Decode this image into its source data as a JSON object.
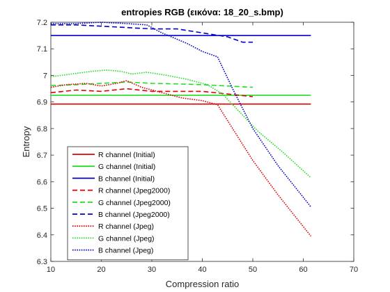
{
  "chart_data": {
    "type": "line",
    "title": "entropies RGB (εικόνα: 18_20_s.bmp)",
    "xlabel": "Compression ratio",
    "ylabel": "Entropy",
    "xlim": [
      10,
      70
    ],
    "ylim": [
      6.3,
      7.2
    ],
    "xticks": [
      10,
      20,
      30,
      40,
      50,
      60,
      70
    ],
    "yticks": [
      6.3,
      6.4,
      6.5,
      6.6,
      6.7,
      6.8,
      6.9,
      7,
      7.1,
      7.2
    ],
    "grid": false,
    "legend_position": "bottom-left",
    "series": [
      {
        "name": "R channel (Initial)",
        "color": "#e00000",
        "style": "solid",
        "x": [
          10,
          61.5
        ],
        "y": [
          6.892,
          6.892
        ]
      },
      {
        "name": "G channel (Initial)",
        "color": "#22dd22",
        "style": "solid",
        "x": [
          10,
          61.5
        ],
        "y": [
          6.925,
          6.925
        ]
      },
      {
        "name": "B channel (Initial)",
        "color": "#0000cc",
        "style": "solid",
        "x": [
          10,
          61.5
        ],
        "y": [
          7.15,
          7.15
        ]
      },
      {
        "name": "R channel (Jpeg2000)",
        "color": "#e00000",
        "style": "dashed",
        "x": [
          10,
          15,
          20,
          25,
          30,
          35,
          40,
          45,
          50
        ],
        "y": [
          6.935,
          6.945,
          6.94,
          6.95,
          6.94,
          6.94,
          6.94,
          6.93,
          6.92
        ]
      },
      {
        "name": "G channel (Jpeg2000)",
        "color": "#22dd22",
        "style": "dashed",
        "x": [
          10,
          15,
          20,
          25,
          30,
          35,
          40,
          45,
          50
        ],
        "y": [
          6.962,
          6.965,
          6.97,
          6.975,
          6.97,
          6.968,
          6.965,
          6.96,
          6.955
        ]
      },
      {
        "name": "B channel (Jpeg2000)",
        "color": "#0000cc",
        "style": "dashed",
        "x": [
          10,
          15,
          20,
          25,
          30,
          35,
          40,
          45,
          48,
          50
        ],
        "y": [
          7.19,
          7.19,
          7.185,
          7.18,
          7.175,
          7.175,
          7.16,
          7.145,
          7.125,
          7.125
        ]
      },
      {
        "name": "R channel (Jpeg)",
        "color": "#e00000",
        "style": "dotted",
        "x": [
          10,
          13,
          17,
          20,
          23,
          25,
          28,
          32,
          36,
          40,
          43,
          46,
          50,
          55,
          61.5
        ],
        "y": [
          6.955,
          6.965,
          6.97,
          6.96,
          6.97,
          6.98,
          6.955,
          6.935,
          6.915,
          6.905,
          6.89,
          6.8,
          6.68,
          6.55,
          6.395
        ]
      },
      {
        "name": "G channel (Jpeg)",
        "color": "#22dd22",
        "style": "dotted",
        "x": [
          10,
          14,
          18,
          21,
          24,
          26,
          29,
          33,
          37,
          41,
          44,
          47,
          51,
          56,
          61.5
        ],
        "y": [
          6.995,
          7.005,
          7.015,
          7.02,
          7.015,
          7.005,
          7.012,
          7.0,
          6.985,
          6.965,
          6.93,
          6.87,
          6.79,
          6.71,
          6.615
        ]
      },
      {
        "name": "B channel (Jpeg)",
        "color": "#0000cc",
        "style": "dotted",
        "x": [
          10,
          15,
          20,
          25,
          29,
          32,
          37,
          40,
          43,
          46,
          50,
          55,
          61.5
        ],
        "y": [
          7.195,
          7.195,
          7.2,
          7.195,
          7.19,
          7.16,
          7.12,
          7.09,
          7.07,
          6.95,
          6.8,
          6.66,
          6.505
        ]
      }
    ]
  }
}
